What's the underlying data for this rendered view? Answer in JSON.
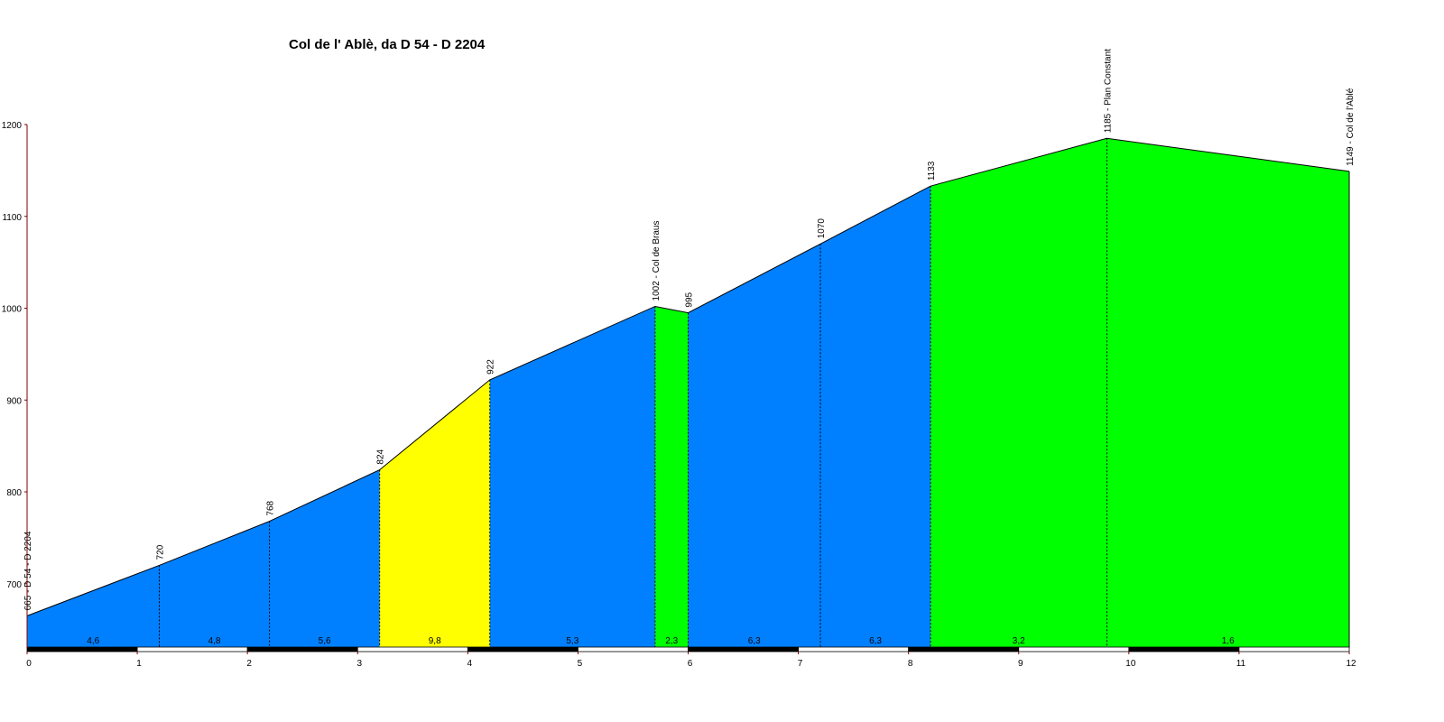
{
  "chart_data": {
    "type": "area",
    "title": "Col de l' Ablè, da D 54 - D 2204",
    "xlabel": "",
    "ylabel": "",
    "xlim": [
      0,
      12
    ],
    "ylim": [
      630,
      1200
    ],
    "x_ticks": [
      "0",
      "1",
      "2",
      "3",
      "4",
      "5",
      "6",
      "7",
      "8",
      "9",
      "10",
      "11",
      "12"
    ],
    "y_ticks": [
      "700",
      "800",
      "900",
      "1000",
      "1100",
      "1200"
    ],
    "grid": false,
    "points": [
      {
        "x": 0,
        "y": 665,
        "label": "665 - D 54 - D 2204"
      },
      {
        "x": 1.2,
        "y": 720,
        "label": "720"
      },
      {
        "x": 2.2,
        "y": 768,
        "label": "768"
      },
      {
        "x": 3.2,
        "y": 824,
        "label": "824"
      },
      {
        "x": 4.2,
        "y": 922,
        "label": "922"
      },
      {
        "x": 5.7,
        "y": 1002,
        "label": "1002 - Col de Braus"
      },
      {
        "x": 6.0,
        "y": 995,
        "label": "995"
      },
      {
        "x": 7.2,
        "y": 1070,
        "label": "1070"
      },
      {
        "x": 8.2,
        "y": 1133,
        "label": "1133"
      },
      {
        "x": 9.8,
        "y": 1185,
        "label": "1185 - Plan Constant"
      },
      {
        "x": 12.0,
        "y": 1149,
        "label": "1149 - Col de l'Ablé"
      }
    ],
    "segments": [
      {
        "x0": 0,
        "x1": 1.2,
        "gradient": "4,6",
        "color": "#0080ff"
      },
      {
        "x0": 1.2,
        "x1": 2.2,
        "gradient": "4,8",
        "color": "#0080ff"
      },
      {
        "x0": 2.2,
        "x1": 3.2,
        "gradient": "5,6",
        "color": "#0080ff"
      },
      {
        "x0": 3.2,
        "x1": 4.2,
        "gradient": "9,8",
        "color": "#ffff00"
      },
      {
        "x0": 4.2,
        "x1": 5.7,
        "gradient": "5,3",
        "color": "#0080ff"
      },
      {
        "x0": 5.7,
        "x1": 6.0,
        "gradient": "2,3",
        "color": "#00ff00"
      },
      {
        "x0": 6.0,
        "x1": 7.2,
        "gradient": "6,3",
        "color": "#0080ff"
      },
      {
        "x0": 7.2,
        "x1": 8.2,
        "gradient": "6,3",
        "color": "#0080ff"
      },
      {
        "x0": 8.2,
        "x1": 9.8,
        "gradient": "3,2",
        "color": "#00ff00"
      },
      {
        "x0": 9.8,
        "x1": 12.0,
        "gradient": "1,6",
        "color": "#00ff00"
      }
    ],
    "colors": {
      "axis": "#800000",
      "outline": "#000000",
      "scale_dark": "#000000",
      "scale_light": "#ffffff"
    }
  }
}
